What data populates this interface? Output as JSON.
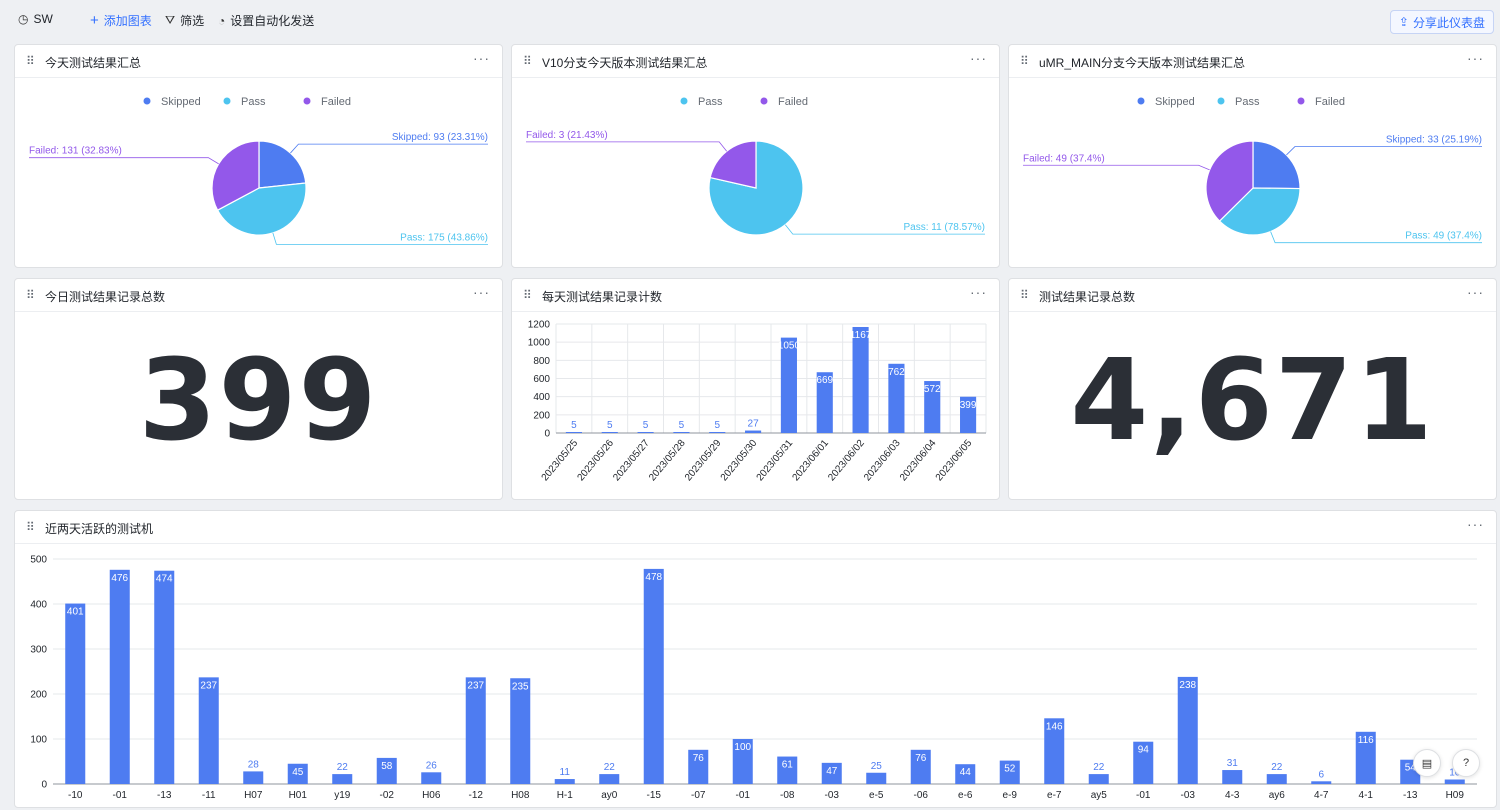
{
  "toolbar": {
    "dashboard_name": "SW",
    "add_chart": "添加图表",
    "filter": "筛选",
    "auto_send": "设置自动化发送",
    "share": "分享此仪表盘"
  },
  "colors": {
    "skipped": "#4e7cf1",
    "pass": "#4dc4ef",
    "failed": "#9358ea",
    "bar": "#4e7cf1",
    "accent": "#3370ff"
  },
  "cards": {
    "today_summary": "今天测试结果汇总",
    "v10_summary": "V10分支今天版本测试结果汇总",
    "umr_summary": "uMR_MAIN分支今天版本测试结果汇总",
    "today_total": "今日测试结果记录总数",
    "daily_count": "每天测试结果记录计数",
    "all_total": "测试结果记录总数",
    "active_machines": "近两天活跃的测试机"
  },
  "metrics": {
    "today_total": "399",
    "all_total": "4,671"
  },
  "chart_data": [
    {
      "type": "pie",
      "legend": [
        "Skipped",
        "Pass",
        "Failed"
      ],
      "slices": [
        {
          "name": "Skipped",
          "value": 93,
          "label": "Skipped: 93 (23.31%)"
        },
        {
          "name": "Pass",
          "value": 175,
          "label": "Pass: 175 (43.86%)"
        },
        {
          "name": "Failed",
          "value": 131,
          "label": "Failed: 131 (32.83%)"
        }
      ]
    },
    {
      "type": "pie",
      "legend": [
        "Pass",
        "Failed"
      ],
      "slices": [
        {
          "name": "Pass",
          "value": 11,
          "label": "Pass: 11 (78.57%)"
        },
        {
          "name": "Failed",
          "value": 3,
          "label": "Failed: 3 (21.43%)"
        }
      ]
    },
    {
      "type": "pie",
      "legend": [
        "Skipped",
        "Pass",
        "Failed"
      ],
      "slices": [
        {
          "name": "Skipped",
          "value": 33,
          "label": "Skipped: 33 (25.19%)"
        },
        {
          "name": "Pass",
          "value": 49,
          "label": "Pass: 49 (37.4%)"
        },
        {
          "name": "Failed",
          "value": 49,
          "label": "Failed: 49 (37.4%)"
        }
      ]
    },
    {
      "type": "bar",
      "categories": [
        "2023/05/25",
        "2023/05/26",
        "2023/05/27",
        "2023/05/28",
        "2023/05/29",
        "2023/05/30",
        "2023/05/31",
        "2023/06/01",
        "2023/06/02",
        "2023/06/03",
        "2023/06/04",
        "2023/06/05"
      ],
      "values": [
        5,
        5,
        5,
        5,
        5,
        27,
        1050,
        669,
        1167,
        762,
        572,
        399
      ],
      "ylim": [
        0,
        1200
      ],
      "yticks": [
        0,
        200,
        400,
        600,
        800,
        1000,
        1200
      ],
      "grid": true
    },
    {
      "type": "bar",
      "categories": [
        "-10",
        "-01",
        "-13",
        "-11",
        "H07",
        "H01",
        "y19",
        "-02",
        "H06",
        "-12",
        "H08",
        "H-1",
        "ay0",
        "-15",
        "-07",
        "-01",
        "-08",
        "-03",
        "e-5",
        "-06",
        "e-6",
        "e-9",
        "e-7",
        "ay5",
        "-01",
        "-03",
        "4-3",
        "ay6",
        "4-7",
        "4-1",
        "-13",
        "H09"
      ],
      "values": [
        401,
        476,
        474,
        237,
        28,
        45,
        22,
        58,
        26,
        237,
        235,
        11,
        22,
        478,
        76,
        100,
        61,
        47,
        25,
        76,
        44,
        52,
        146,
        22,
        94,
        238,
        31,
        22,
        6,
        116,
        54,
        10
      ],
      "ylim": [
        0,
        500
      ],
      "yticks": [
        0,
        100,
        200,
        300,
        400,
        500
      ],
      "grid": true
    }
  ]
}
